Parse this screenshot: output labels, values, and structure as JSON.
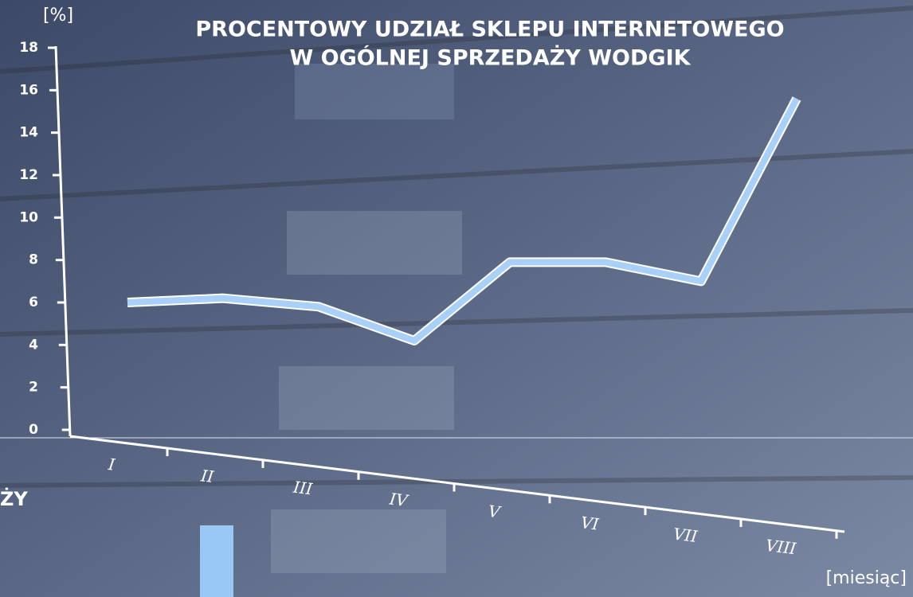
{
  "chart_data": {
    "type": "line",
    "title": [
      "PROCENTOWY UDZIAŁ SKLEPU INTERNETOWEGO",
      "W OGÓLNEJ SPRZEDAŻY WODGIK"
    ],
    "y_label": "[%]",
    "x_label": "[miesiąc]",
    "categories": [
      "I",
      "II",
      "III",
      "IV",
      "V",
      "VI",
      "VII",
      "VIII"
    ],
    "values": [
      6.0,
      6.2,
      5.8,
      4.2,
      7.9,
      7.9,
      7.0,
      15.6
    ],
    "color": "#a8d0f8",
    "ylim": [
      0,
      18
    ],
    "yticks": [
      0,
      2,
      4,
      6,
      8,
      10,
      12,
      14,
      16,
      18
    ]
  },
  "overlay_text": "ŻY"
}
